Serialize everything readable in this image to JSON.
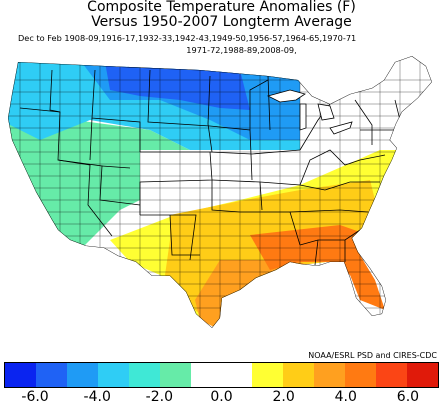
{
  "title_line1": "Composite Temperature Anomalies (F)",
  "title_line2": "Versus 1950-2007 Longterm Average",
  "subtitle_line1": "Dec to Feb   1908-09,1916-17,1932-33,1942-43,1949-50,1956-57,1964-65,1970-71",
  "subtitle_line2": "1971-72,1988-89,2008-09,",
  "credit": "NOAA/ESRL PSD and CIRES-CDC",
  "legend": {
    "colors": [
      "#0a24f0",
      "#1f62f5",
      "#1f9bf5",
      "#2fcdf5",
      "#3fe8d6",
      "#66eba8",
      "#ffffff",
      "#ffffff",
      "#ffff33",
      "#ffcd17",
      "#ffa01f",
      "#ff7a12",
      "#fb4515",
      "#e01a0a"
    ],
    "tick_labels": [
      "-6.0",
      "-4.0",
      "-2.0",
      "0.0",
      "2.0",
      "4.0",
      "6.0"
    ]
  },
  "regions": [
    {
      "name": "northwest",
      "anomaly": -3.0,
      "color": "#2fcdf5"
    },
    {
      "name": "northern-plains",
      "anomaly": -5.0,
      "color": "#1f62f5"
    },
    {
      "name": "west",
      "anomaly": -1.5,
      "color": "#66eba8"
    },
    {
      "name": "southeast",
      "anomaly": 4.0,
      "color": "#ff7a12"
    },
    {
      "name": "south-central",
      "anomaly": 3.0,
      "color": "#ffa01f"
    },
    {
      "name": "mid-atlantic",
      "anomaly": 1.0,
      "color": "#ffff33"
    }
  ]
}
